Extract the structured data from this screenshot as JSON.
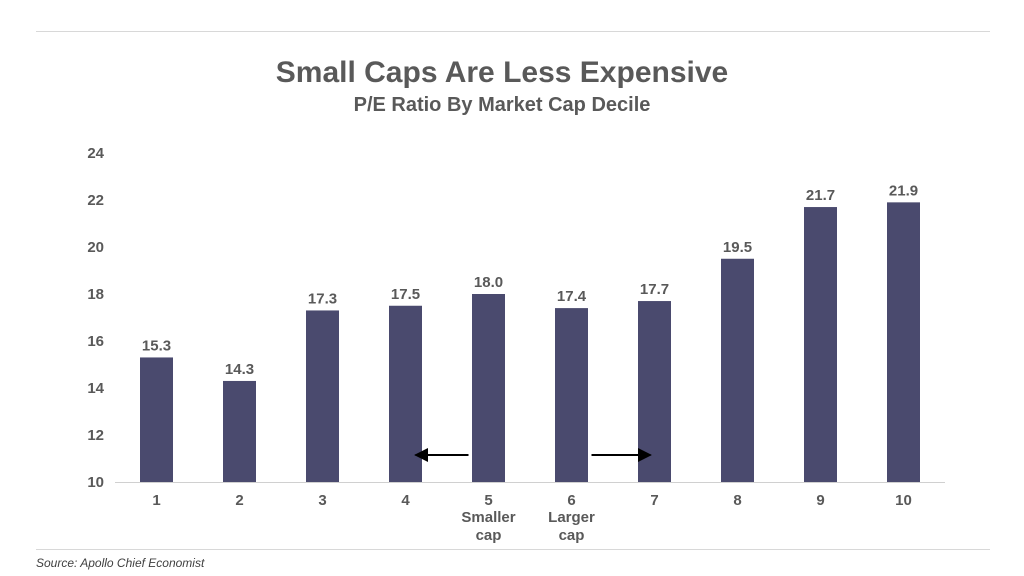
{
  "chart_data": {
    "type": "bar",
    "title": "Small Caps Are Less Expensive",
    "subtitle": "P/E Ratio By Market Cap Decile",
    "categories": [
      "1",
      "2",
      "3",
      "4",
      "5",
      "6",
      "7",
      "8",
      "9",
      "10"
    ],
    "values": [
      15.3,
      14.3,
      17.3,
      17.5,
      18.0,
      17.4,
      17.7,
      19.5,
      21.7,
      21.9
    ],
    "data_labels": [
      "15.3",
      "14.3",
      "17.3",
      "17.5",
      "18.0",
      "17.4",
      "17.7",
      "19.5",
      "21.7",
      "21.9"
    ],
    "ylim": [
      10,
      24
    ],
    "yticks": [
      10,
      12,
      14,
      16,
      18,
      20,
      22,
      24
    ],
    "grid": false,
    "bar_color": "#4a4a6e",
    "annotations": [
      {
        "text": "Smaller cap",
        "category": "5",
        "arrow": "left"
      },
      {
        "text": "Larger cap",
        "category": "6",
        "arrow": "right"
      }
    ]
  },
  "source": "Source: Apollo Chief Economist"
}
